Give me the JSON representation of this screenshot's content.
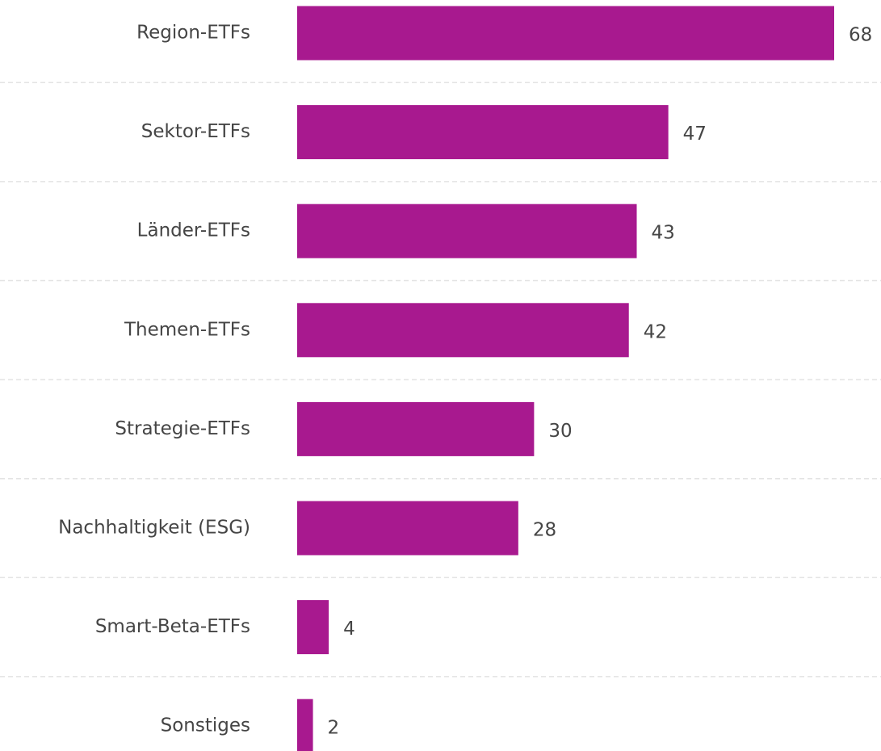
{
  "chart_data": {
    "type": "bar",
    "orientation": "horizontal",
    "categories": [
      "Region-ETFs",
      "Sektor-ETFs",
      "Länder-ETFs",
      "Themen-ETFs",
      "Strategie-ETFs",
      "Nachhaltigkeit (ESG)",
      "Smart-Beta-ETFs",
      "Sonstiges"
    ],
    "values": [
      68,
      47,
      43,
      42,
      30,
      28,
      4,
      2
    ],
    "color": "#a8198f"
  }
}
